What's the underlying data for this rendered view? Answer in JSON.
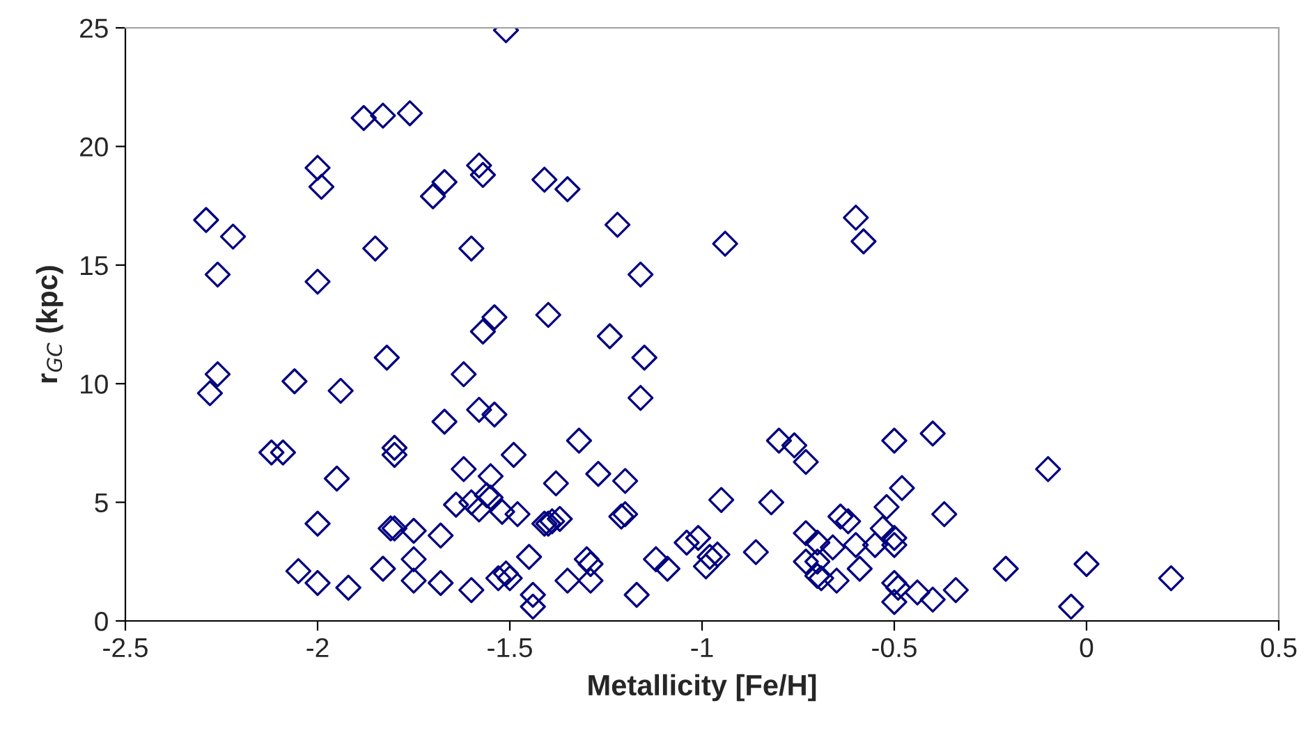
{
  "chart_data": {
    "type": "scatter",
    "xlabel": "Metallicity [Fe/H]",
    "ylabel": "r$_{GC}$ (kpc)",
    "xlim": [
      -2.5,
      0.5
    ],
    "xticks": [
      -2.5,
      -2,
      -1.5,
      -1,
      -0.5,
      0,
      0.5
    ],
    "ylim": [
      0,
      25
    ],
    "yticks": [
      0,
      5,
      10,
      15,
      20,
      25
    ],
    "grid": false,
    "legend": false,
    "marker": "diamond",
    "series": [
      {
        "color": "#000080",
        "x": [
          -1.51,
          -1.88,
          -1.83,
          -1.76,
          -2.0,
          -1.99,
          -1.7,
          -1.67,
          -1.58,
          -1.57,
          -1.41,
          -1.35,
          -2.29,
          -2.22,
          -2.26,
          -2.0,
          -1.85,
          -1.6,
          -1.22,
          -1.16,
          -0.94,
          -0.6,
          -0.58,
          -1.54,
          -1.57,
          -1.82,
          -2.26,
          -2.28,
          -2.06,
          -1.94,
          -1.62,
          -1.58,
          -1.54,
          -1.67,
          -2.12,
          -2.09,
          -1.8,
          -1.8,
          -1.49,
          -1.95,
          -1.62,
          -1.55,
          -1.56,
          -1.55,
          -1.6,
          -1.64,
          -1.58,
          -1.52,
          -1.48,
          -2.0,
          -1.81,
          -1.8,
          -1.75,
          -1.68,
          -1.45,
          -1.75,
          -1.83,
          -2.05,
          -2.0,
          -1.92,
          -1.75,
          -1.68,
          -1.6,
          -1.53,
          -1.51,
          -1.5,
          -1.44,
          -1.44,
          -1.41,
          -1.4,
          -1.24,
          -1.15,
          -1.16,
          -1.32,
          -1.27,
          -1.2,
          -1.38,
          -1.4,
          -1.39,
          -1.37,
          -1.2,
          -1.21,
          -1.3,
          -1.29,
          -1.35,
          -1.29,
          -1.17,
          -1.12,
          -1.09,
          -1.04,
          -1.01,
          -0.98,
          -0.96,
          -0.99,
          -0.95,
          -0.86,
          -0.82,
          -0.8,
          -0.76,
          -0.73,
          -0.73,
          -0.7,
          -0.66,
          -0.73,
          -0.7,
          -0.7,
          -0.69,
          -0.65,
          -0.64,
          -0.62,
          -0.6,
          -0.59,
          -0.55,
          -0.53,
          -0.52,
          -0.5,
          -0.5,
          -0.48,
          -0.5,
          -0.5,
          -0.49,
          -0.5,
          -0.44,
          -0.4,
          -0.4,
          -0.37,
          -0.34,
          -0.21,
          -0.1,
          0.0,
          -0.04,
          0.22
        ],
        "values": [
          24.9,
          21.2,
          21.3,
          21.4,
          19.1,
          18.3,
          17.9,
          18.5,
          19.2,
          18.8,
          18.6,
          18.2,
          16.9,
          16.2,
          14.6,
          14.3,
          15.7,
          15.7,
          16.7,
          14.6,
          15.9,
          17.0,
          16.0,
          12.8,
          12.2,
          11.1,
          10.4,
          9.6,
          10.1,
          9.7,
          10.4,
          8.9,
          8.7,
          8.4,
          7.1,
          7.1,
          7.3,
          7.0,
          7.0,
          6.0,
          6.4,
          6.1,
          5.3,
          5.2,
          5.0,
          4.9,
          4.7,
          4.6,
          4.5,
          4.1,
          3.9,
          3.9,
          3.8,
          3.6,
          2.7,
          2.6,
          2.2,
          2.1,
          1.6,
          1.4,
          1.7,
          1.6,
          1.3,
          1.8,
          2.0,
          1.8,
          1.1,
          0.6,
          4.1,
          12.9,
          12.0,
          11.1,
          9.4,
          7.6,
          6.2,
          5.9,
          5.8,
          4.1,
          4.2,
          4.3,
          4.5,
          4.4,
          2.6,
          2.4,
          1.7,
          1.7,
          1.1,
          2.6,
          2.2,
          3.3,
          3.5,
          2.7,
          2.8,
          2.3,
          5.1,
          2.9,
          5.0,
          7.6,
          7.4,
          6.7,
          3.7,
          3.3,
          3.1,
          2.5,
          2.5,
          1.9,
          1.8,
          1.7,
          4.4,
          4.2,
          3.2,
          2.2,
          3.2,
          3.9,
          4.8,
          3.5,
          3.2,
          5.6,
          7.6,
          1.6,
          1.4,
          0.8,
          1.2,
          0.9,
          7.9,
          4.5,
          1.3,
          2.2,
          6.4,
          2.4,
          0.6,
          1.8
        ]
      }
    ]
  }
}
